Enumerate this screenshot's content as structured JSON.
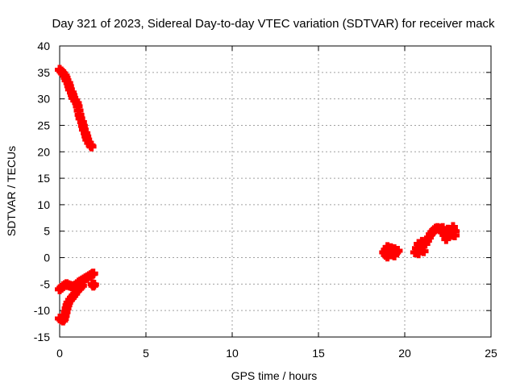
{
  "chart_data": {
    "type": "scatter",
    "title": "Day 321 of 2023, Sidereal Day-to-day VTEC variation (SDTVAR) for receiver mack",
    "xlabel": "GPS time / hours",
    "ylabel": "SDTVAR / TECUs",
    "xlim": [
      0,
      25
    ],
    "ylim": [
      -15,
      40
    ],
    "xticks": [
      0,
      5,
      10,
      15,
      20,
      25
    ],
    "yticks": [
      -15,
      -10,
      -5,
      0,
      5,
      10,
      15,
      20,
      25,
      30,
      35,
      40
    ],
    "grid": true,
    "series_color": "#ff0000",
    "series": [
      {
        "points": [
          [
            0.0,
            35.5
          ],
          [
            0.1,
            35.2
          ],
          [
            0.2,
            34.8
          ],
          [
            0.3,
            34.4
          ],
          [
            0.35,
            34.0
          ],
          [
            0.4,
            33.5
          ],
          [
            0.5,
            33.0
          ],
          [
            0.55,
            32.4
          ],
          [
            0.6,
            31.8
          ],
          [
            0.7,
            31.2
          ],
          [
            0.75,
            30.7
          ],
          [
            0.8,
            30.2
          ],
          [
            0.9,
            29.7
          ],
          [
            1.0,
            29.2
          ],
          [
            1.05,
            28.6
          ],
          [
            1.1,
            27.8
          ],
          [
            1.15,
            27.0
          ],
          [
            1.2,
            26.3
          ],
          [
            1.3,
            25.6
          ],
          [
            1.35,
            24.9
          ],
          [
            1.4,
            24.2
          ],
          [
            1.5,
            23.5
          ],
          [
            1.55,
            22.9
          ],
          [
            1.6,
            22.3
          ],
          [
            1.7,
            21.7
          ],
          [
            1.8,
            21.2
          ],
          [
            1.85,
            21.0
          ],
          [
            0.0,
            -6.0
          ],
          [
            0.1,
            -5.7
          ],
          [
            0.2,
            -5.4
          ],
          [
            0.3,
            -5.2
          ],
          [
            0.4,
            -5.0
          ],
          [
            0.5,
            -5.2
          ],
          [
            0.6,
            -5.3
          ],
          [
            0.7,
            -5.4
          ],
          [
            0.8,
            -5.4
          ],
          [
            0.9,
            -5.3
          ],
          [
            1.0,
            -5.0
          ],
          [
            1.1,
            -4.7
          ],
          [
            1.2,
            -4.5
          ],
          [
            1.3,
            -4.3
          ],
          [
            1.4,
            -4.1
          ],
          [
            1.5,
            -3.9
          ],
          [
            1.6,
            -3.7
          ],
          [
            1.7,
            -3.5
          ],
          [
            1.8,
            -3.3
          ],
          [
            1.9,
            -3.1
          ],
          [
            1.95,
            -3.0
          ],
          [
            0.0,
            -11.5
          ],
          [
            0.1,
            -11.7
          ],
          [
            0.2,
            -11.9
          ],
          [
            0.25,
            -11.6
          ],
          [
            0.3,
            -11.0
          ],
          [
            0.35,
            -10.3
          ],
          [
            0.4,
            -9.6
          ],
          [
            0.45,
            -9.0
          ],
          [
            0.5,
            -8.5
          ],
          [
            0.6,
            -8.0
          ],
          [
            0.7,
            -7.6
          ],
          [
            0.8,
            -7.2
          ],
          [
            0.9,
            -6.8
          ],
          [
            1.0,
            -6.3
          ],
          [
            1.1,
            -5.9
          ],
          [
            1.2,
            -5.6
          ],
          [
            1.3,
            -5.3
          ],
          [
            1.9,
            -5.0
          ],
          [
            1.95,
            -5.3
          ],
          [
            2.0,
            -5.1
          ],
          [
            18.8,
            1.0
          ],
          [
            18.9,
            0.5
          ],
          [
            18.9,
            1.5
          ],
          [
            19.0,
            0.2
          ],
          [
            19.0,
            2.0
          ],
          [
            19.1,
            1.2
          ],
          [
            19.2,
            0.6
          ],
          [
            19.2,
            1.8
          ],
          [
            19.3,
            1.0
          ],
          [
            19.4,
            0.4
          ],
          [
            19.4,
            1.6
          ],
          [
            19.5,
            1.0
          ],
          [
            19.6,
            1.3
          ],
          [
            20.6,
            1.0
          ],
          [
            20.7,
            1.8
          ],
          [
            20.8,
            2.6
          ],
          [
            20.8,
            0.8
          ],
          [
            20.9,
            1.5
          ],
          [
            21.0,
            2.2
          ],
          [
            21.0,
            3.0
          ],
          [
            21.1,
            1.2
          ],
          [
            21.2,
            2.6
          ],
          [
            21.3,
            3.2
          ],
          [
            21.4,
            3.8
          ],
          [
            21.5,
            4.4
          ],
          [
            21.6,
            4.8
          ],
          [
            21.7,
            5.2
          ],
          [
            21.8,
            5.5
          ],
          [
            21.9,
            5.6
          ],
          [
            22.0,
            5.5
          ],
          [
            22.1,
            5.3
          ],
          [
            22.2,
            4.8
          ],
          [
            22.2,
            5.6
          ],
          [
            22.3,
            4.3
          ],
          [
            22.4,
            3.5
          ],
          [
            22.5,
            4.5
          ],
          [
            22.5,
            5.3
          ],
          [
            22.6,
            5.0
          ],
          [
            22.7,
            4.3
          ],
          [
            22.8,
            5.2
          ],
          [
            22.8,
            5.8
          ],
          [
            22.9,
            5.0
          ],
          [
            22.9,
            4.2
          ]
        ]
      }
    ]
  }
}
